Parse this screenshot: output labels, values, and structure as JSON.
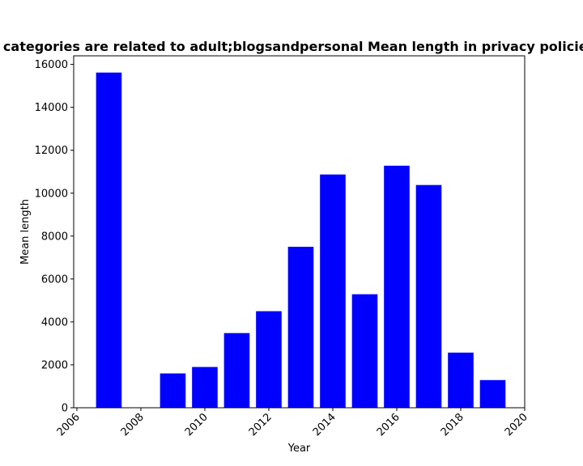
{
  "chart_data": {
    "type": "bar",
    "title": "categories are related to adult;blogsandpersonal Mean length in privacy policies",
    "xlabel": "Year",
    "ylabel": "Mean length",
    "x": [
      2007,
      2008,
      2009,
      2010,
      2011,
      2012,
      2013,
      2014,
      2015,
      2016,
      2017,
      2018,
      2019
    ],
    "values": [
      15620,
      0,
      1600,
      1900,
      3480,
      4500,
      7500,
      10870,
      5290,
      11280,
      10380,
      2570,
      1290
    ],
    "xlim": [
      2005.9,
      2020.0
    ],
    "ylim": [
      0,
      16400
    ],
    "xticks": [
      2006,
      2008,
      2010,
      2012,
      2014,
      2016,
      2018,
      2020
    ],
    "yticks": [
      0,
      2000,
      4000,
      6000,
      8000,
      10000,
      12000,
      14000,
      16000
    ],
    "bar_color": "#0000ff",
    "grid": false,
    "legend": "none"
  }
}
